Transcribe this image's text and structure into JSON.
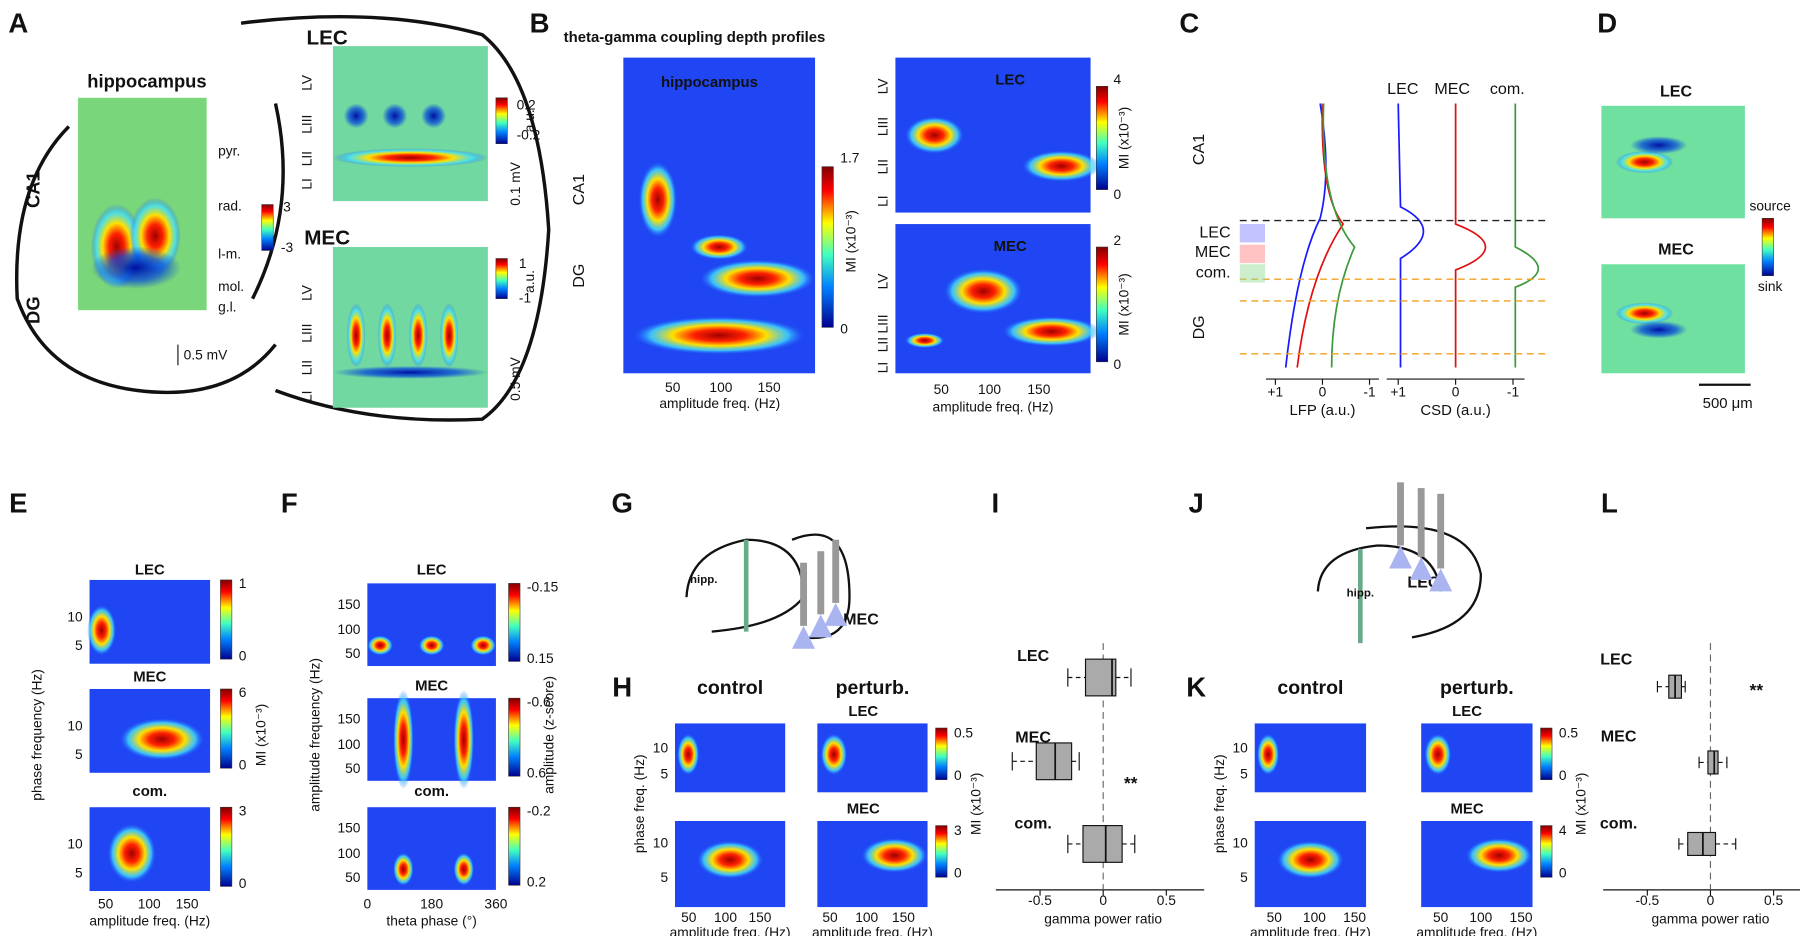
{
  "A": {
    "label": "A",
    "title": "hippocampus",
    "regions": [
      "CA1",
      "DG"
    ],
    "layers": [
      "pyr.",
      "rad.",
      "l-m.",
      "mol.",
      "g.l."
    ],
    "colorbar": [
      3,
      -3
    ],
    "scale": "0.5 mV",
    "lec": {
      "name": "LEC",
      "layers": [
        "LV",
        "LIII",
        "LII",
        "LI"
      ],
      "colorbar": [
        0.2,
        -0.2
      ],
      "unit": "a.u.",
      "scale": "0.1 mV"
    },
    "mec": {
      "name": "MEC",
      "layers": [
        "LV",
        "LIII",
        "LII",
        "LI"
      ],
      "colorbar": [
        1,
        -1
      ],
      "unit": "a.u.",
      "scale": "0.5 mV"
    }
  },
  "B": {
    "label": "B",
    "title": "theta-gamma coupling depth profiles",
    "xlabel": "amplitude freq. (Hz)",
    "xticks": [
      50,
      100,
      150
    ],
    "unit": "MI (x10⁻³)",
    "hip": {
      "name": "hippocampus",
      "regions": [
        "CA1",
        "DG"
      ],
      "colorbar": [
        1.7,
        0
      ]
    },
    "lec": {
      "name": "LEC",
      "layers": [
        "LV",
        "LIII",
        "LII",
        "LI"
      ],
      "colorbar": [
        4,
        0
      ]
    },
    "mec": {
      "name": "MEC",
      "layers": [
        "LV",
        "LIII",
        "LII",
        "LI"
      ],
      "colorbar": [
        2,
        0
      ]
    }
  },
  "C": {
    "label": "C",
    "regions": [
      "CA1",
      "DG"
    ],
    "inputs": [
      "LEC",
      "MEC",
      "com."
    ],
    "lfp": {
      "xlabel": "LFP (a.u.)",
      "xticks": [
        {
          "value": 1,
          "label": "+1"
        },
        0,
        -1
      ]
    },
    "csd": {
      "xlabel": "CSD (a.u.)",
      "xticks": [
        {
          "value": 1,
          "label": "+1"
        },
        0,
        -1
      ]
    }
  },
  "D": {
    "label": "D",
    "panels": [
      "LEC",
      "MEC"
    ],
    "colorbar": [
      "source",
      "sink"
    ],
    "scale": "500 μm"
  },
  "E": {
    "label": "E",
    "panels": [
      {
        "name": "LEC",
        "colorbar": [
          1,
          0
        ]
      },
      {
        "name": "MEC",
        "colorbar": [
          6,
          0
        ]
      },
      {
        "name": "com.",
        "colorbar": [
          3,
          0
        ]
      }
    ],
    "yticks": [
      10,
      5
    ],
    "ylabel": "phase frequency (Hz)",
    "unit": "MI (x10⁻³)",
    "xticks": [
      50,
      100,
      150
    ],
    "xlabel": "amplitude freq. (Hz)"
  },
  "F": {
    "label": "F",
    "panels": [
      {
        "name": "LEC",
        "colorbar": [
          -0.15,
          0.15
        ]
      },
      {
        "name": "MEC",
        "colorbar": [
          -0.6,
          0.6
        ]
      },
      {
        "name": "com.",
        "colorbar": [
          -0.2,
          0.2
        ]
      }
    ],
    "yticks": [
      150,
      100,
      50
    ],
    "ylabel": "amplitude frequency (Hz)",
    "unit": "amplitude (z-score)",
    "xticks": [
      0,
      180,
      360
    ],
    "xlabel": "theta phase (°)"
  },
  "G": {
    "label": "G",
    "region": "hipp.",
    "target": "MEC"
  },
  "H": {
    "label": "H",
    "conditions": [
      "control",
      "perturb."
    ],
    "rows": [
      {
        "name": "LEC",
        "colorbar": [
          0.5,
          0
        ]
      },
      {
        "name": "MEC",
        "colorbar": [
          3,
          0
        ]
      }
    ],
    "yticks": [
      10,
      5
    ],
    "ylabel": "phase freq. (Hz)",
    "xticks": [
      50,
      100,
      150
    ],
    "xlabel": "amplitude freq. (Hz)",
    "unit": "MI (x10⁻³)"
  },
  "I": {
    "label": "I",
    "xticks": [
      -0.5,
      0,
      0.5
    ],
    "xlabel": "gamma power ratio",
    "significance": "**",
    "boxes": [
      {
        "name": "LEC",
        "stats": [
          -0.28,
          -0.14,
          0.07,
          0.1,
          0.22
        ]
      },
      {
        "name": "MEC",
        "stats": [
          -0.72,
          -0.53,
          -0.38,
          -0.25,
          -0.19
        ]
      },
      {
        "name": "com.",
        "stats": [
          -0.28,
          -0.16,
          0.02,
          0.15,
          0.25
        ]
      }
    ]
  },
  "J": {
    "label": "J",
    "region": "hipp.",
    "target": "LEC"
  },
  "K": {
    "label": "K",
    "conditions": [
      "control",
      "perturb."
    ],
    "rows": [
      {
        "name": "LEC",
        "colorbar": [
          0.5,
          0
        ]
      },
      {
        "name": "MEC",
        "colorbar": [
          4,
          0
        ]
      }
    ],
    "yticks": [
      10,
      5
    ],
    "ylabel": "phase freq. (Hz)",
    "xticks": [
      50,
      100,
      150
    ],
    "xlabel": "amplitude freq. (Hz)",
    "unit": "MI (x10⁻³)"
  },
  "L": {
    "label": "L",
    "xticks": [
      -0.5,
      0,
      0.5
    ],
    "xlabel": "gamma power ratio",
    "significance": "**",
    "boxes": [
      {
        "name": "LEC",
        "stats": [
          -0.42,
          -0.33,
          -0.28,
          -0.23,
          -0.2
        ]
      },
      {
        "name": "MEC",
        "stats": [
          -0.09,
          -0.02,
          0.03,
          0.06,
          0.13
        ]
      },
      {
        "name": "com.",
        "stats": [
          -0.25,
          -0.18,
          -0.06,
          0.04,
          0.2
        ]
      }
    ]
  }
}
